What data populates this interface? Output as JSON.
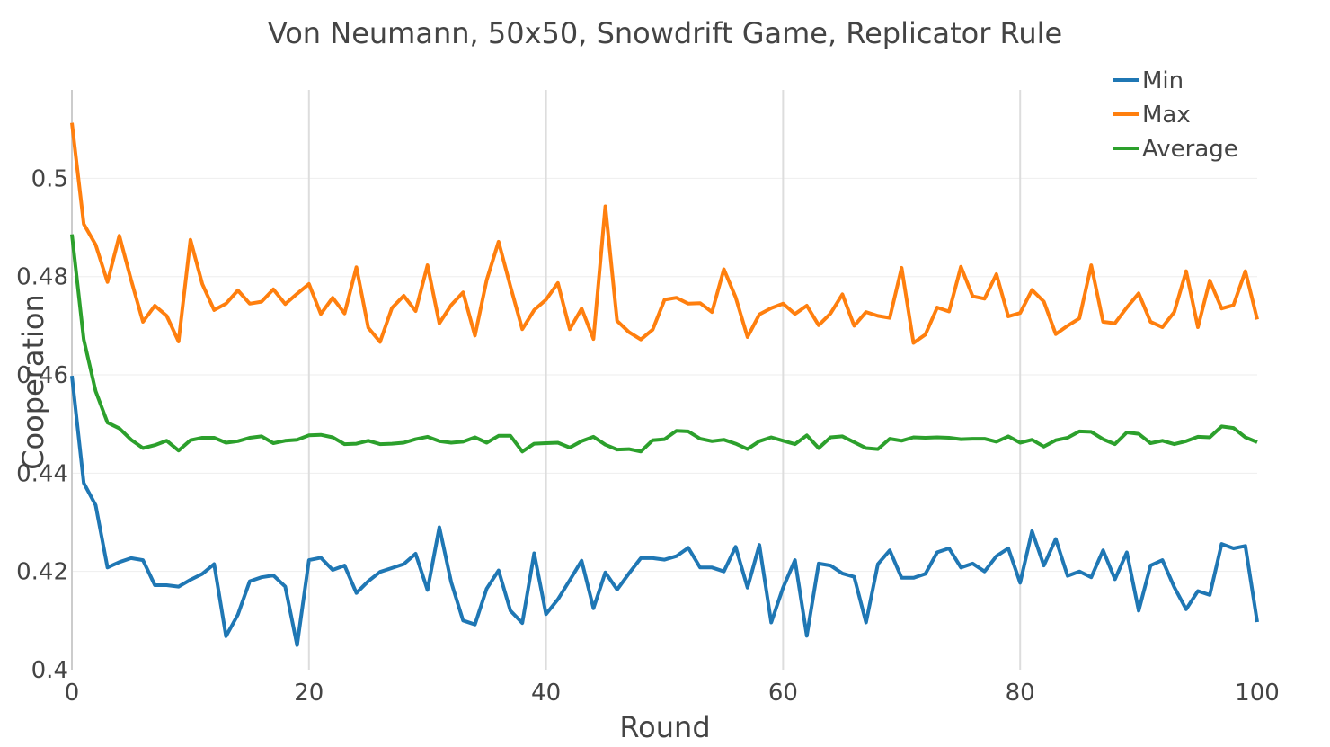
{
  "chart_data": {
    "type": "line",
    "title": "Von Neumann, 50x50, Snowdrift Game, Replicator Rule",
    "xlabel": "Round",
    "ylabel": "Cooperation",
    "xlim": [
      0,
      100
    ],
    "ylim": [
      0.4,
      0.518
    ],
    "xticks": [
      0,
      20,
      40,
      60,
      80,
      100
    ],
    "yticks": [
      0.4,
      0.42,
      0.44,
      0.46,
      0.48,
      0.5
    ],
    "ytick_labels": [
      "0.4",
      "0.42",
      "0.44",
      "0.46",
      "0.48",
      "0.5"
    ],
    "grid": true,
    "legend_position": "top-right",
    "series": [
      {
        "name": "Min",
        "color": "#1f77b4",
        "values": [
          0.4598,
          0.438,
          0.4335,
          0.4208,
          0.4219,
          0.4227,
          0.4223,
          0.4172,
          0.4172,
          0.4169,
          0.4183,
          0.4195,
          0.4215,
          0.4068,
          0.4112,
          0.418,
          0.4188,
          0.4192,
          0.4169,
          0.405,
          0.4223,
          0.4228,
          0.4203,
          0.4212,
          0.4156,
          0.418,
          0.4199,
          0.4207,
          0.4215,
          0.4236,
          0.4162,
          0.429,
          0.4178,
          0.41,
          0.4092,
          0.4165,
          0.4202,
          0.412,
          0.4095,
          0.4237,
          0.4113,
          0.4143,
          0.4182,
          0.4222,
          0.4125,
          0.4198,
          0.4163,
          0.4196,
          0.4227,
          0.4227,
          0.4224,
          0.4231,
          0.4248,
          0.4208,
          0.4208,
          0.42,
          0.425,
          0.4167,
          0.4254,
          0.4096,
          0.4167,
          0.4223,
          0.4069,
          0.4216,
          0.4212,
          0.4196,
          0.4189,
          0.4096,
          0.4215,
          0.4243,
          0.4187,
          0.4187,
          0.4195,
          0.4239,
          0.4247,
          0.4208,
          0.4216,
          0.42,
          0.4231,
          0.4247,
          0.4177,
          0.4282,
          0.4212,
          0.4266,
          0.4191,
          0.42,
          0.4188,
          0.4243,
          0.4184,
          0.4239,
          0.412,
          0.4212,
          0.4223,
          0.4168,
          0.4123,
          0.416,
          0.4152,
          0.4256,
          0.4247,
          0.4252,
          0.4097
        ]
      },
      {
        "name": "Max",
        "color": "#ff7f0e",
        "values": [
          0.5113,
          0.4907,
          0.4865,
          0.4789,
          0.4883,
          0.4793,
          0.4708,
          0.4741,
          0.472,
          0.4668,
          0.4875,
          0.4785,
          0.4732,
          0.4745,
          0.4772,
          0.4745,
          0.4749,
          0.4774,
          0.4744,
          0.4765,
          0.4785,
          0.4724,
          0.4757,
          0.4725,
          0.4819,
          0.4696,
          0.4667,
          0.4736,
          0.4761,
          0.473,
          0.4823,
          0.4705,
          0.4742,
          0.4768,
          0.468,
          0.4793,
          0.4871,
          0.478,
          0.4693,
          0.4732,
          0.4753,
          0.4787,
          0.4693,
          0.4735,
          0.4673,
          0.4943,
          0.471,
          0.4687,
          0.4672,
          0.4692,
          0.4753,
          0.4757,
          0.4745,
          0.4746,
          0.4728,
          0.4815,
          0.4758,
          0.4677,
          0.4723,
          0.4736,
          0.4745,
          0.4724,
          0.4741,
          0.4701,
          0.4725,
          0.4764,
          0.47,
          0.4728,
          0.472,
          0.4716,
          0.4818,
          0.4665,
          0.4682,
          0.4737,
          0.4729,
          0.482,
          0.476,
          0.4755,
          0.4805,
          0.4719,
          0.4726,
          0.4773,
          0.4749,
          0.4683,
          0.47,
          0.4715,
          0.4823,
          0.4708,
          0.4705,
          0.4737,
          0.4766,
          0.4708,
          0.4697,
          0.4728,
          0.4811,
          0.4697,
          0.4792,
          0.4735,
          0.4742,
          0.4811,
          0.4713
        ]
      },
      {
        "name": "Average",
        "color": "#2ca02c",
        "values": [
          0.4886,
          0.4672,
          0.4567,
          0.4503,
          0.4491,
          0.4468,
          0.4451,
          0.4457,
          0.4466,
          0.4446,
          0.4467,
          0.4472,
          0.4472,
          0.4462,
          0.4465,
          0.4472,
          0.4475,
          0.4461,
          0.4466,
          0.4468,
          0.4477,
          0.4478,
          0.4473,
          0.4459,
          0.446,
          0.4466,
          0.4459,
          0.446,
          0.4462,
          0.4469,
          0.4474,
          0.4465,
          0.4462,
          0.4464,
          0.4473,
          0.4462,
          0.4476,
          0.4476,
          0.4444,
          0.446,
          0.4461,
          0.4462,
          0.4452,
          0.4465,
          0.4474,
          0.4458,
          0.4448,
          0.4449,
          0.4444,
          0.4467,
          0.4469,
          0.4486,
          0.4485,
          0.447,
          0.4465,
          0.4468,
          0.446,
          0.4449,
          0.4465,
          0.4473,
          0.4466,
          0.4459,
          0.4477,
          0.4451,
          0.4473,
          0.4475,
          0.4463,
          0.4451,
          0.4449,
          0.447,
          0.4466,
          0.4473,
          0.4472,
          0.4473,
          0.4472,
          0.4469,
          0.447,
          0.447,
          0.4464,
          0.4475,
          0.4462,
          0.4468,
          0.4454,
          0.4467,
          0.4472,
          0.4485,
          0.4484,
          0.4469,
          0.4459,
          0.4483,
          0.448,
          0.4461,
          0.4466,
          0.4459,
          0.4465,
          0.4474,
          0.4473,
          0.4495,
          0.4492,
          0.4473,
          0.4463
        ]
      }
    ]
  }
}
